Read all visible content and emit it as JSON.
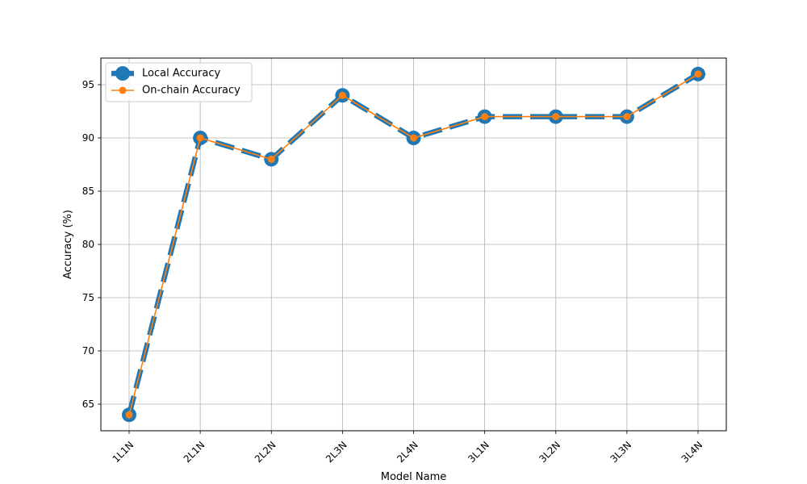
{
  "chart_data": {
    "type": "line",
    "title": "",
    "xlabel": "Model Name",
    "ylabel": "Accuracy (%)",
    "categories": [
      "1L1N",
      "2L1N",
      "2L2N",
      "2L3N",
      "2L4N",
      "3L1N",
      "3L2N",
      "3L3N",
      "3L4N"
    ],
    "ylim": [
      62.5,
      97.5
    ],
    "yticks": [
      65,
      70,
      75,
      80,
      85,
      90,
      95
    ],
    "grid": true,
    "legend_position": "top-left",
    "series": [
      {
        "name": "Local Accuracy",
        "values": [
          64,
          90,
          88,
          94,
          90,
          92,
          92,
          92,
          96
        ],
        "color": "#1f77b4",
        "line_style": "dashed",
        "marker": "circle"
      },
      {
        "name": "On-chain Accuracy",
        "values": [
          64,
          90,
          88,
          94,
          90,
          92,
          92,
          92,
          96
        ],
        "color": "#ff7f0e",
        "line_style": "solid",
        "marker": "circle"
      }
    ]
  }
}
